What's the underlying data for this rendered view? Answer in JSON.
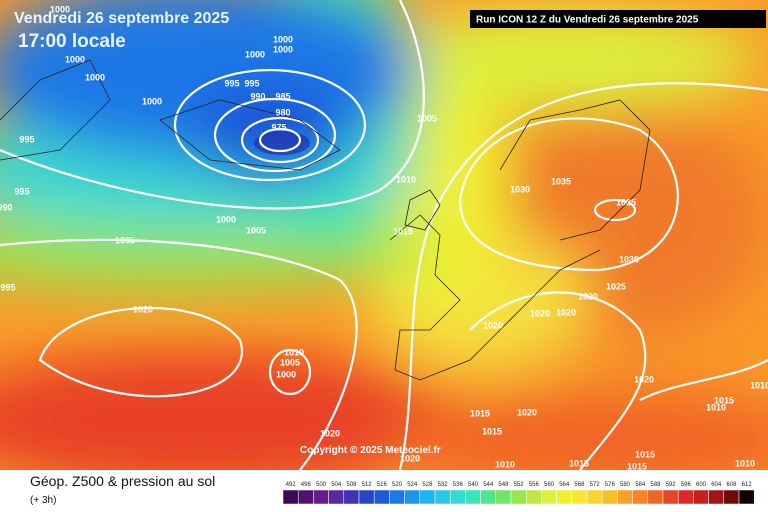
{
  "header": {
    "date": "Vendredi 26 septembre 2025",
    "time": "17:00 locale",
    "run": "Run ICON 12 Z du Vendredi 26 septembre 2025"
  },
  "isobar_labels": [
    1000,
    1000,
    1000,
    1000,
    1000,
    1000,
    1000,
    995,
    995,
    990,
    985,
    980,
    975,
    995,
    995,
    990,
    1000,
    1005,
    1005,
    995,
    1005,
    1010,
    1015,
    1020,
    1010,
    1005,
    1000,
    1030,
    1035,
    1035,
    1030,
    1025,
    1020,
    1020,
    1020,
    1020,
    1020,
    1015,
    1020,
    1015,
    1020,
    1020,
    1010,
    1015,
    1015,
    1015,
    1010,
    1010,
    1015,
    1010
  ],
  "copyright": "Copyright © 2025 Meteociel.fr",
  "footer": {
    "title": "Géop. Z500 & pression au sol",
    "lead": "(+ 3h)"
  },
  "scale": {
    "values": [
      492,
      496,
      500,
      504,
      508,
      512,
      516,
      520,
      524,
      528,
      532,
      536,
      540,
      544,
      548,
      552,
      556,
      560,
      564,
      568,
      572,
      576,
      580,
      584,
      588,
      592,
      596,
      600,
      604,
      608,
      612
    ],
    "colors": [
      "#3c0a50",
      "#50146e",
      "#641e8c",
      "#5a28a0",
      "#3c32b4",
      "#2846c8",
      "#1e5adc",
      "#1e78e6",
      "#1e96f0",
      "#1eb4f0",
      "#28c8e6",
      "#32dcd2",
      "#3ce6b4",
      "#50e68c",
      "#6ee664",
      "#96e650",
      "#bee646",
      "#dcf03c",
      "#f0f032",
      "#fae632",
      "#fad232",
      "#fabe28",
      "#faa028",
      "#fa8228",
      "#f06428",
      "#e64628",
      "#dc2828",
      "#c81e1e",
      "#a01414",
      "#6e0a0a",
      "#140000"
    ]
  }
}
